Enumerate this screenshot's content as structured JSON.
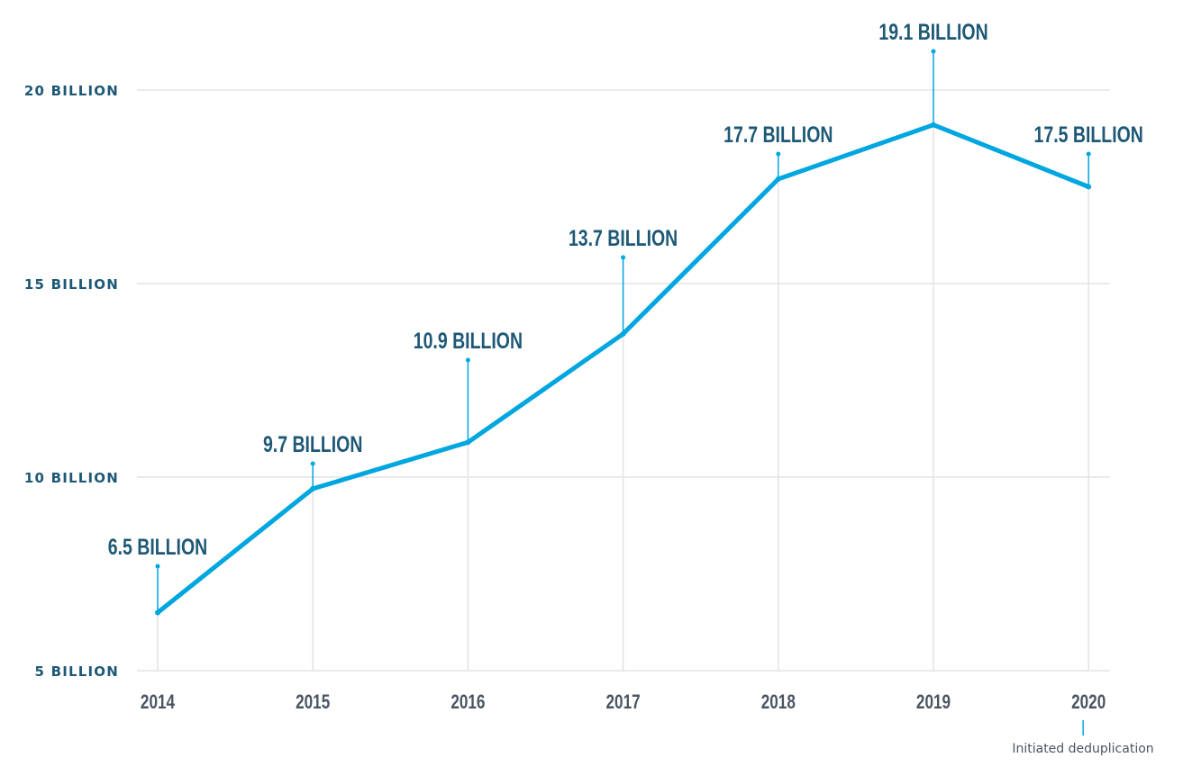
{
  "chart_data": {
    "type": "line",
    "title": "",
    "xlabel": "",
    "ylabel": "",
    "categories": [
      "2014",
      "2015",
      "2016",
      "2017",
      "2018",
      "2019",
      "2020"
    ],
    "values": [
      6.5,
      9.7,
      10.9,
      13.7,
      17.7,
      19.1,
      17.5
    ],
    "data_labels": [
      "6.5 BILLION",
      "9.7 BILLION",
      "10.9 BILLION",
      "13.7 BILLION",
      "17.7 BILLION",
      "19.1 BILLION",
      "17.5 BILLION"
    ],
    "y_ticks": [
      5,
      10,
      15,
      20
    ],
    "y_tick_labels": [
      "5 BILLION",
      "10 BILLION",
      "15 BILLION",
      "20 BILLION"
    ],
    "ylim": [
      5,
      20
    ],
    "grid": "horizontal",
    "annotation": {
      "category": "2020",
      "text": "Initiated deduplication"
    },
    "colors": {
      "line": "#00a6df",
      "labels": "#1d5876",
      "ticks": "#4a5563",
      "grid": "#e3e3e3"
    }
  }
}
